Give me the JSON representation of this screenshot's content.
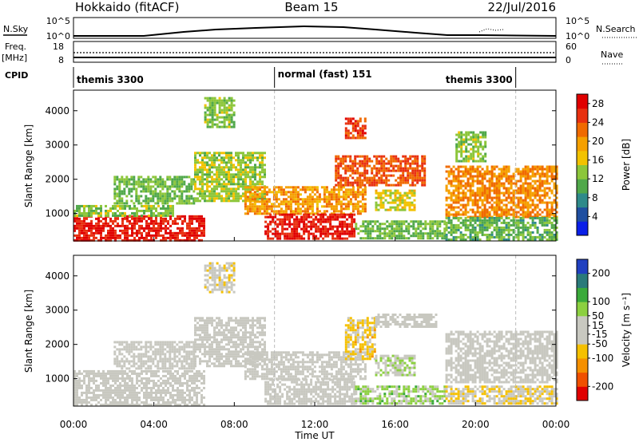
{
  "header": {
    "site": "Hokkaido (fitACF)",
    "beam": "Beam 15",
    "date": "22/Jul/2016"
  },
  "left_labels": {
    "nsky": "N.Sky",
    "freq": "Freq.",
    "freq_unit": "[MHz]",
    "cpid": "CPID"
  },
  "right_labels": {
    "nsearch": "N.Search",
    "nave": "Nave"
  },
  "noise_axis": {
    "left_top": "10^5",
    "left_bottom": "10^0",
    "right_top": "10^5",
    "right_bottom": "10^0"
  },
  "freq_axis": {
    "left_ticks": [
      "18",
      "8"
    ],
    "right_ticks": [
      "60",
      "0"
    ]
  },
  "cpid_segments": [
    {
      "label": "themis 3300",
      "start_h": 0,
      "end_h": 10
    },
    {
      "label": "normal (fast) 151",
      "start_h": 10,
      "end_h": 22
    },
    {
      "label": "themis 3300",
      "start_h": 22,
      "end_h": 24
    }
  ],
  "colors": {
    "power": [
      "#0a1fe8",
      "#1f4fa0",
      "#2e8a8a",
      "#50a84a",
      "#8cc63a",
      "#f2c200",
      "#f5a000",
      "#f06a00",
      "#e83010",
      "#e00000"
    ],
    "velocity": [
      "#e00000",
      "#f05000",
      "#f59000",
      "#f5c000",
      "#c8c8c0",
      "#c8c8c0",
      "#8cd040",
      "#3aaa3a",
      "#2a7a7a",
      "#2040c0"
    ]
  },
  "chart_data": [
    {
      "type": "heatmap",
      "title": "Power",
      "ylabel": "Slant Range [km]",
      "xlabel": "Time UT",
      "xlim": [
        0,
        24
      ],
      "ylim": [
        200,
        4600
      ],
      "x_ticks": [
        "00:00",
        "04:00",
        "08:00",
        "12:00",
        "16:00",
        "20:00",
        "00:00"
      ],
      "y_ticks": [
        "1000",
        "2000",
        "3000",
        "4000"
      ],
      "y_tick_values": [
        1000,
        2000,
        3000,
        4000
      ],
      "colorbar": {
        "label": "Power [dB]",
        "ticks": [
          "4",
          "8",
          "12",
          "16",
          "20",
          "24",
          "28"
        ],
        "tick_values": [
          4,
          8,
          12,
          16,
          20,
          24,
          28
        ],
        "range": [
          0,
          30
        ]
      },
      "regions": [
        {
          "t0": 0.0,
          "t1": 6.5,
          "r0": 250,
          "r1": 950,
          "level": 27
        },
        {
          "t0": 0.0,
          "t1": 5.0,
          "r0": 950,
          "r1": 1250,
          "level": 13
        },
        {
          "t0": 2.0,
          "t1": 6.0,
          "r0": 1300,
          "r1": 2100,
          "level": 12
        },
        {
          "t0": 6.0,
          "t1": 9.5,
          "r0": 1400,
          "r1": 2800,
          "level": 14
        },
        {
          "t0": 8.5,
          "t1": 14.5,
          "r0": 1000,
          "r1": 1800,
          "level": 20
        },
        {
          "t0": 9.5,
          "t1": 14.0,
          "r0": 300,
          "r1": 1000,
          "level": 27
        },
        {
          "t0": 13.0,
          "t1": 17.5,
          "r0": 1800,
          "r1": 2700,
          "level": 24
        },
        {
          "t0": 13.5,
          "t1": 14.5,
          "r0": 3200,
          "r1": 3800,
          "level": 25
        },
        {
          "t0": 14.0,
          "t1": 18.5,
          "r0": 300,
          "r1": 800,
          "level": 12
        },
        {
          "t0": 15.0,
          "t1": 17.0,
          "r0": 1100,
          "r1": 1700,
          "level": 16
        },
        {
          "t0": 18.5,
          "t1": 24.0,
          "r0": 900,
          "r1": 2400,
          "level": 21
        },
        {
          "t0": 18.5,
          "t1": 24.0,
          "r0": 250,
          "r1": 900,
          "level": 11
        },
        {
          "t0": 19.0,
          "t1": 20.5,
          "r0": 2500,
          "r1": 3400,
          "level": 13
        },
        {
          "t0": 6.5,
          "t1": 8.0,
          "r0": 3500,
          "r1": 4400,
          "level": 13
        }
      ]
    },
    {
      "type": "heatmap",
      "title": "Velocity",
      "ylabel": "Slant Range [km]",
      "xlabel": "Time UT",
      "xlim": [
        0,
        24
      ],
      "ylim": [
        200,
        4600
      ],
      "x_ticks": [
        "00:00",
        "04:00",
        "08:00",
        "12:00",
        "16:00",
        "20:00",
        "00:00"
      ],
      "y_ticks": [
        "1000",
        "2000",
        "3000",
        "4000"
      ],
      "y_tick_values": [
        1000,
        2000,
        3000,
        4000
      ],
      "colorbar": {
        "label": "Velocity [m s⁻¹]",
        "ticks": [
          "-200",
          "-100",
          "-50",
          "-15",
          "15",
          "50",
          "100",
          "200"
        ],
        "tick_values": [
          -200,
          -100,
          -50,
          -15,
          15,
          50,
          100,
          200
        ],
        "range": [
          -250,
          250
        ]
      },
      "regions": [
        {
          "t0": 0.0,
          "t1": 6.5,
          "r0": 250,
          "r1": 1250,
          "level": 0
        },
        {
          "t0": 2.0,
          "t1": 6.0,
          "r0": 1300,
          "r1": 2100,
          "level": 5
        },
        {
          "t0": 6.0,
          "t1": 9.5,
          "r0": 1400,
          "r1": 2800,
          "level": 0
        },
        {
          "t0": 8.5,
          "t1": 14.5,
          "r0": 1000,
          "r1": 1800,
          "level": 0
        },
        {
          "t0": 9.5,
          "t1": 14.0,
          "r0": 300,
          "r1": 1000,
          "level": 0
        },
        {
          "t0": 13.5,
          "t1": 15.0,
          "r0": 1600,
          "r1": 2800,
          "level": -60
        },
        {
          "t0": 15.0,
          "t1": 18.0,
          "r0": 2500,
          "r1": 2900,
          "level": 0
        },
        {
          "t0": 14.0,
          "t1": 18.5,
          "r0": 300,
          "r1": 800,
          "level": 60
        },
        {
          "t0": 15.0,
          "t1": 17.0,
          "r0": 1100,
          "r1": 1700,
          "level": 40
        },
        {
          "t0": 18.5,
          "t1": 24.0,
          "r0": 900,
          "r1": 2400,
          "level": 0
        },
        {
          "t0": 18.5,
          "t1": 24.0,
          "r0": 250,
          "r1": 800,
          "level": -40
        },
        {
          "t0": 6.5,
          "t1": 8.0,
          "r0": 3500,
          "r1": 4400,
          "level": -20
        }
      ]
    }
  ]
}
